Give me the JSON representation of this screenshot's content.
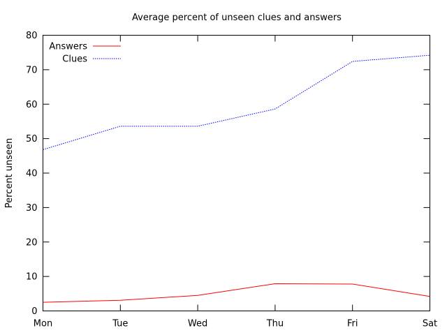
{
  "chart_data": {
    "type": "line",
    "title": "Average percent of unseen clues and answers",
    "xlabel": "",
    "ylabel": "Percent unseen",
    "categories": [
      "Mon",
      "Tue",
      "Wed",
      "Thu",
      "Fri",
      "Sat"
    ],
    "ylim": [
      0,
      80
    ],
    "yticks": [
      "0",
      "10",
      "20",
      "30",
      "40",
      "50",
      "60",
      "70",
      "80"
    ],
    "grid": false,
    "legend_position": "top-left",
    "series": [
      {
        "name": "Answers",
        "values": [
          2.5,
          3.1,
          4.5,
          7.9,
          7.8,
          4.2
        ],
        "color": "#ff0000",
        "style": "solid"
      },
      {
        "name": "Clues",
        "values": [
          46.8,
          53.6,
          53.6,
          58.6,
          72.4,
          74.2
        ],
        "color": "#0000ff",
        "style": "dotted"
      }
    ]
  }
}
